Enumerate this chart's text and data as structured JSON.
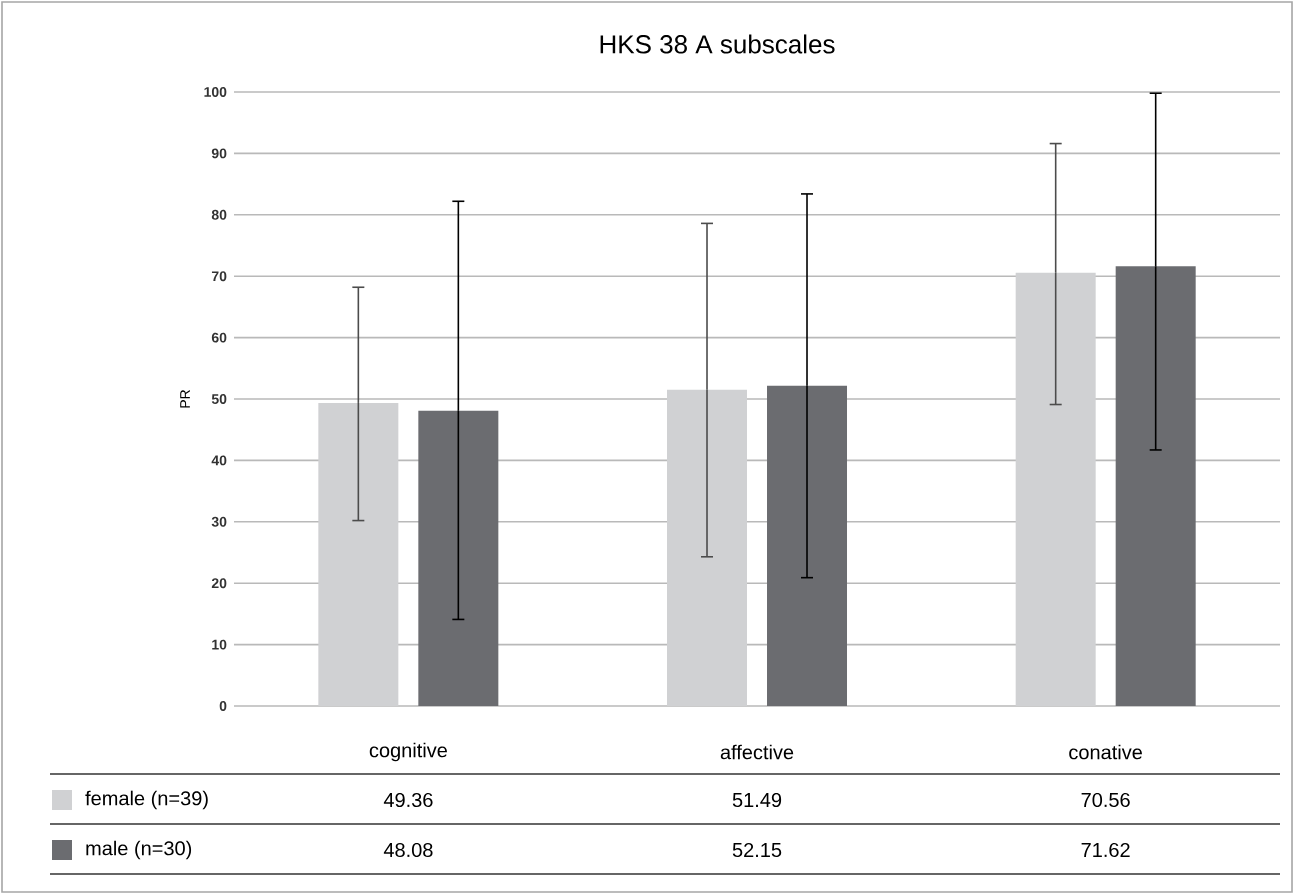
{
  "chart_data": {
    "type": "bar",
    "title": "HKS 38 A subscales",
    "ylabel": "PR",
    "categories": [
      "cognitive",
      "affective",
      "conative"
    ],
    "series": [
      {
        "name": "female (n=39)",
        "color": "#d0d1d3",
        "values": [
          49.36,
          51.49,
          70.56
        ],
        "errors": [
          [
            30.2,
            68.2
          ],
          [
            24.3,
            78.6
          ],
          [
            49.1,
            91.6
          ]
        ]
      },
      {
        "name": "male (n=30)",
        "color": "#6b6c70",
        "values": [
          48.08,
          52.15,
          71.62
        ],
        "errors": [
          [
            14.1,
            82.2
          ],
          [
            20.9,
            83.4
          ],
          [
            41.7,
            99.8
          ]
        ]
      }
    ],
    "ylim": [
      0,
      100
    ],
    "yticks": [
      0,
      10,
      20,
      30,
      40,
      50,
      60,
      70,
      80,
      90,
      100
    ],
    "grid": "y",
    "legend": "bottom",
    "data_labels": true
  }
}
